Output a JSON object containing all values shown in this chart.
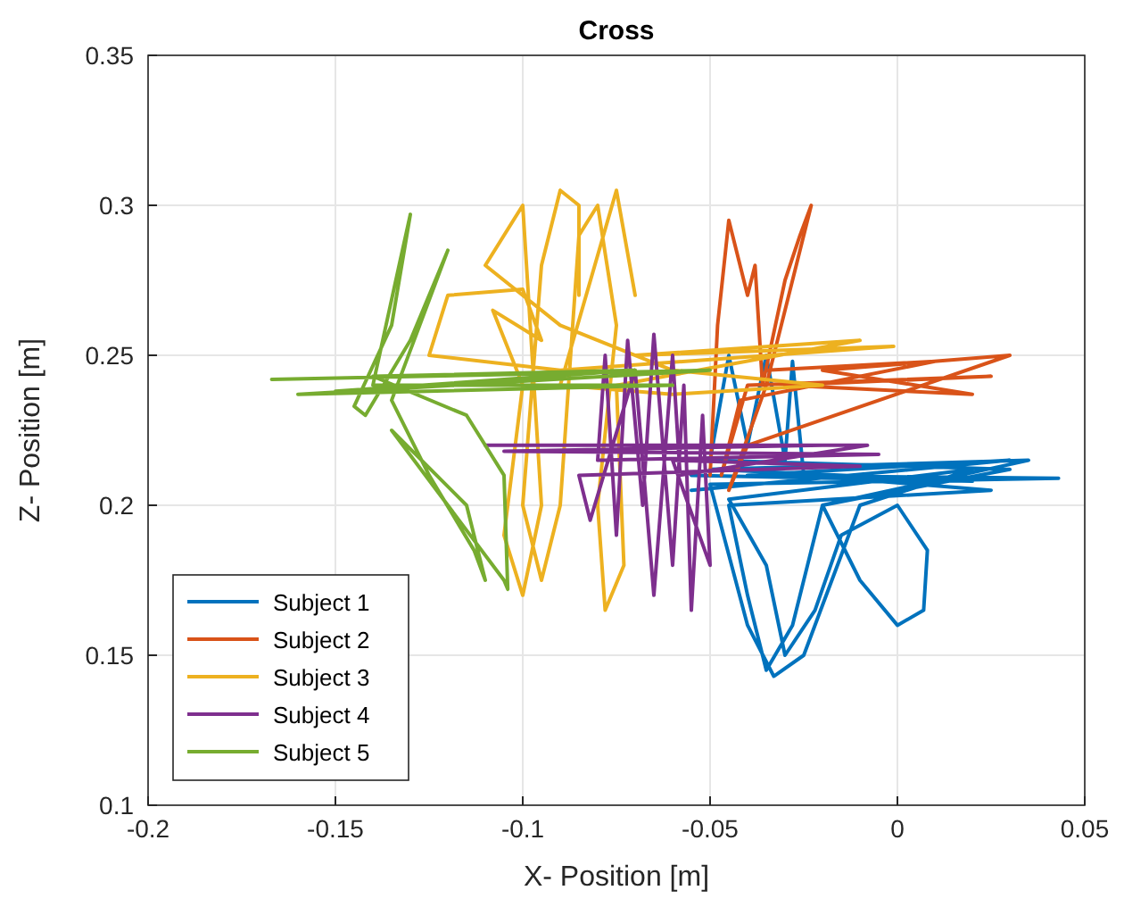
{
  "chart_data": {
    "type": "line",
    "title": "Cross",
    "xlabel": "X- Position [m]",
    "ylabel": "Z- Position [m]",
    "xlim": [
      -0.2,
      0.05
    ],
    "xticks": [
      -0.2,
      -0.15,
      -0.1,
      -0.05,
      0,
      0.05
    ],
    "ylim": [
      0.1,
      0.35
    ],
    "yticks": [
      0.1,
      0.15,
      0.2,
      0.25,
      0.3,
      0.35
    ],
    "grid": true,
    "legend": "bottom left",
    "marker": "none",
    "line_style": "solid",
    "series": [
      {
        "name": "Subject 1",
        "color": "#0072bd",
        "x": [
          -0.055,
          0.03,
          -0.04,
          0.043,
          -0.05,
          -0.04,
          -0.033,
          -0.025,
          -0.01,
          0.02,
          -0.045,
          -0.035,
          -0.03,
          -0.022,
          -0.015,
          0.0,
          0.008,
          0.007,
          0.0,
          -0.01,
          -0.02,
          0.03,
          -0.05,
          -0.045,
          -0.04,
          -0.035,
          -0.03,
          -0.028,
          -0.025,
          0.025,
          -0.045,
          -0.04,
          -0.035,
          -0.028,
          -0.02,
          0.035,
          -0.05,
          0.02,
          -0.055
        ],
        "values": [
          0.205,
          0.215,
          0.21,
          0.209,
          0.207,
          0.16,
          0.143,
          0.15,
          0.2,
          0.212,
          0.202,
          0.18,
          0.15,
          0.165,
          0.19,
          0.2,
          0.185,
          0.165,
          0.16,
          0.175,
          0.2,
          0.212,
          0.215,
          0.25,
          0.22,
          0.25,
          0.215,
          0.248,
          0.21,
          0.205,
          0.2,
          0.17,
          0.145,
          0.16,
          0.2,
          0.215,
          0.212,
          0.208,
          0.21
        ]
      },
      {
        "name": "Subject 2",
        "color": "#d95319",
        "x": [
          -0.05,
          -0.048,
          -0.045,
          -0.04,
          -0.038,
          -0.036,
          -0.03,
          -0.026,
          -0.023,
          -0.035,
          -0.045,
          -0.04,
          0.03,
          -0.02,
          0.02,
          -0.03,
          0.025,
          -0.04,
          -0.047,
          -0.042,
          0.01,
          -0.035
        ],
        "values": [
          0.21,
          0.26,
          0.295,
          0.27,
          0.28,
          0.24,
          0.275,
          0.29,
          0.3,
          0.24,
          0.205,
          0.22,
          0.25,
          0.245,
          0.237,
          0.24,
          0.243,
          0.24,
          0.21,
          0.235,
          0.248,
          0.245
        ]
      },
      {
        "name": "Subject 3",
        "color": "#edb120",
        "x": [
          -0.085,
          -0.085,
          -0.09,
          -0.095,
          -0.1,
          -0.095,
          -0.09,
          -0.085,
          -0.08,
          -0.075,
          -0.08,
          -0.078,
          -0.073,
          -0.075,
          -0.01,
          -0.07,
          -0.001,
          -0.09,
          -0.125,
          -0.12,
          -0.1,
          -0.095,
          -0.108,
          -0.1,
          -0.105,
          -0.1,
          -0.095,
          -0.1,
          -0.11,
          -0.09,
          -0.06,
          -0.02,
          -0.06,
          -0.09,
          -0.075,
          -0.07
        ],
        "values": [
          0.27,
          0.3,
          0.305,
          0.28,
          0.2,
          0.175,
          0.2,
          0.29,
          0.3,
          0.26,
          0.2,
          0.165,
          0.18,
          0.24,
          0.255,
          0.25,
          0.253,
          0.245,
          0.25,
          0.27,
          0.272,
          0.255,
          0.265,
          0.24,
          0.19,
          0.17,
          0.2,
          0.3,
          0.28,
          0.26,
          0.245,
          0.24,
          0.237,
          0.24,
          0.305,
          0.27
        ]
      },
      {
        "name": "Subject 4",
        "color": "#7e2f8e",
        "x": [
          -0.11,
          -0.02,
          -0.105,
          -0.005,
          -0.08,
          -0.078,
          -0.075,
          -0.072,
          -0.068,
          -0.065,
          -0.06,
          -0.057,
          -0.055,
          -0.052,
          -0.05,
          -0.06,
          -0.01,
          -0.085,
          -0.082,
          -0.07,
          -0.065,
          -0.06,
          -0.058,
          -0.008,
          -0.1
        ],
        "values": [
          0.22,
          0.22,
          0.218,
          0.217,
          0.215,
          0.25,
          0.19,
          0.255,
          0.2,
          0.257,
          0.18,
          0.24,
          0.165,
          0.23,
          0.18,
          0.215,
          0.213,
          0.21,
          0.195,
          0.245,
          0.17,
          0.25,
          0.21,
          0.22,
          0.22
        ]
      },
      {
        "name": "Subject 5",
        "color": "#77ac30",
        "x": [
          -0.167,
          -0.05,
          -0.16,
          -0.06,
          -0.14,
          -0.133,
          -0.13,
          -0.135,
          -0.145,
          -0.142,
          -0.13,
          -0.12,
          -0.135,
          -0.125,
          -0.113,
          -0.11,
          -0.115,
          -0.135,
          -0.12,
          -0.105,
          -0.104,
          -0.105,
          -0.115,
          -0.14,
          -0.07,
          -0.15
        ],
        "values": [
          0.242,
          0.245,
          0.237,
          0.24,
          0.24,
          0.28,
          0.297,
          0.26,
          0.233,
          0.23,
          0.255,
          0.285,
          0.235,
          0.21,
          0.185,
          0.175,
          0.2,
          0.225,
          0.2,
          0.175,
          0.172,
          0.21,
          0.23,
          0.243,
          0.245,
          0.238
        ]
      }
    ]
  }
}
